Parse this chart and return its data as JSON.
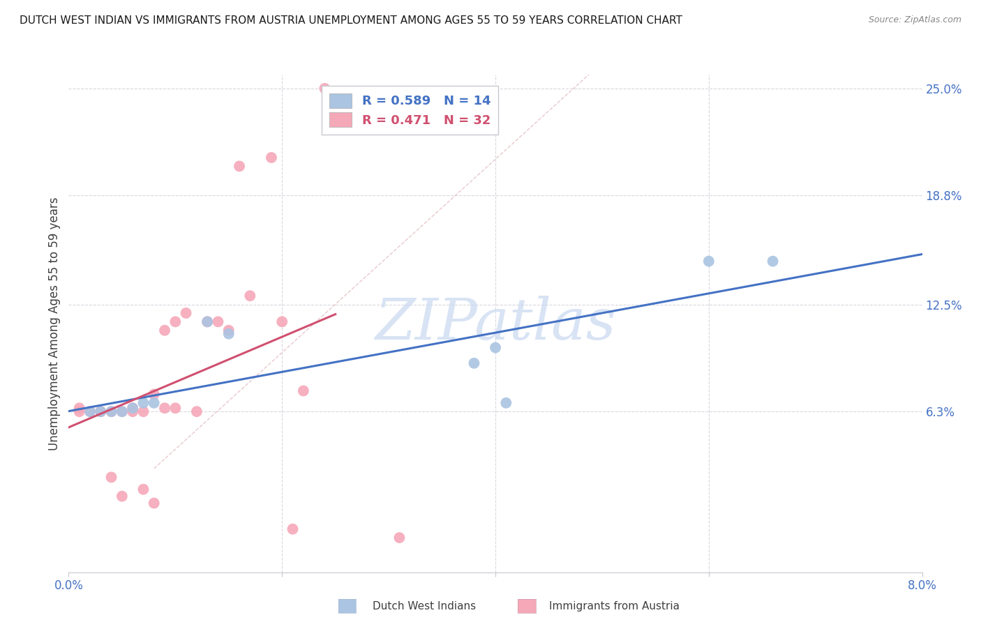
{
  "title": "DUTCH WEST INDIAN VS IMMIGRANTS FROM AUSTRIA UNEMPLOYMENT AMONG AGES 55 TO 59 YEARS CORRELATION CHART",
  "source": "Source: ZipAtlas.com",
  "ylabel": "Unemployment Among Ages 55 to 59 years",
  "x_min": 0.0,
  "x_max": 0.08,
  "y_min": -0.03,
  "y_max": 0.258,
  "x_ticks": [
    0.0,
    0.02,
    0.04,
    0.06,
    0.08
  ],
  "x_tick_labels": [
    "0.0%",
    "",
    "",
    "",
    "8.0%"
  ],
  "y_tick_labels_right": [
    "6.3%",
    "12.5%",
    "18.8%",
    "25.0%"
  ],
  "y_tick_vals_right": [
    0.063,
    0.125,
    0.188,
    0.25
  ],
  "blue_scatter_x": [
    0.002,
    0.003,
    0.004,
    0.005,
    0.006,
    0.007,
    0.008,
    0.013,
    0.015,
    0.038,
    0.04,
    0.041,
    0.06,
    0.066
  ],
  "blue_scatter_y": [
    0.063,
    0.063,
    0.063,
    0.063,
    0.065,
    0.068,
    0.068,
    0.115,
    0.108,
    0.091,
    0.1,
    0.068,
    0.15,
    0.15
  ],
  "pink_scatter_x": [
    0.001,
    0.001,
    0.002,
    0.003,
    0.003,
    0.004,
    0.004,
    0.005,
    0.005,
    0.006,
    0.006,
    0.007,
    0.007,
    0.008,
    0.008,
    0.009,
    0.009,
    0.01,
    0.01,
    0.011,
    0.012,
    0.013,
    0.014,
    0.015,
    0.016,
    0.017,
    0.019,
    0.02,
    0.021,
    0.022,
    0.024,
    0.031
  ],
  "pink_scatter_y": [
    0.063,
    0.065,
    0.063,
    0.063,
    0.063,
    0.063,
    0.025,
    0.063,
    0.014,
    0.063,
    0.065,
    0.063,
    0.018,
    0.073,
    0.01,
    0.11,
    0.065,
    0.115,
    0.065,
    0.12,
    0.063,
    0.115,
    0.115,
    0.11,
    0.205,
    0.13,
    0.21,
    0.115,
    -0.005,
    0.075,
    0.25,
    -0.01
  ],
  "blue_R": 0.589,
  "blue_N": 14,
  "pink_R": 0.471,
  "pink_N": 32,
  "blue_color": "#aac4e2",
  "pink_color": "#f5a8b8",
  "blue_line_color": "#4472c4",
  "pink_line_color": "#d05070",
  "diagonal_color": "#e8c8cc",
  "watermark_text": "ZIPatlas",
  "watermark_color": "#c8d8f0",
  "legend_r_blue": "R = 0.589",
  "legend_n_blue": "N = 14",
  "legend_r_pink": "R = 0.471",
  "legend_n_pink": "N = 32",
  "bottom_legend_blue": "Dutch West Indians",
  "bottom_legend_pink": "Immigrants from Austria"
}
